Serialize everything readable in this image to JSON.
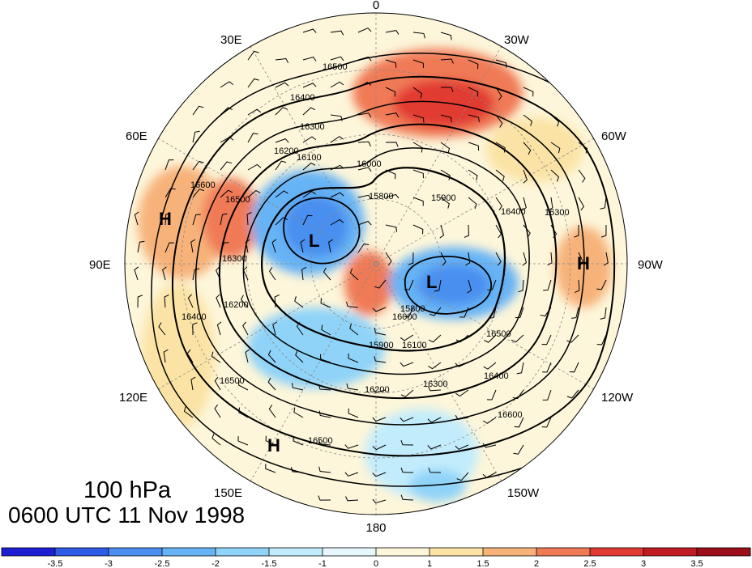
{
  "map": {
    "projection": "north polar stereographic",
    "longitude_labels": [
      "0",
      "30W",
      "60W",
      "90W",
      "120W",
      "150W",
      "180",
      "150E",
      "120E",
      "90E",
      "60E",
      "30E"
    ],
    "pressure_level": "100 hPa",
    "valid_time": "0600 UTC 11 Nov 1998",
    "highs": [
      "H",
      "H",
      "H"
    ],
    "lows": [
      "L",
      "L"
    ],
    "contour_labels": [
      "16500",
      "16400",
      "16300",
      "16200",
      "16100",
      "16000",
      "15900",
      "15800",
      "16600",
      "16500",
      "16400",
      "16300",
      "16200",
      "16100",
      "16000",
      "15900",
      "15800",
      "16200",
      "16300",
      "16400",
      "16500",
      "16600",
      "16500",
      "16400",
      "16300",
      "16500"
    ]
  },
  "colorbar": {
    "tick_labels": [
      "-3.5",
      "-3",
      "-2.5",
      "-2",
      "-1.5",
      "-1",
      "0",
      "1",
      "1.5",
      "2",
      "2.5",
      "3",
      "3.5"
    ],
    "colors": [
      "#1e1ed2",
      "#2d5be6",
      "#4a8ff0",
      "#66b3f5",
      "#8fd3f8",
      "#c2ecfb",
      "#e6f7fd",
      "#fdf6da",
      "#fbe3a5",
      "#f7b27a",
      "#f07a56",
      "#e23a32",
      "#c01a22",
      "#9b0e1a"
    ]
  }
}
